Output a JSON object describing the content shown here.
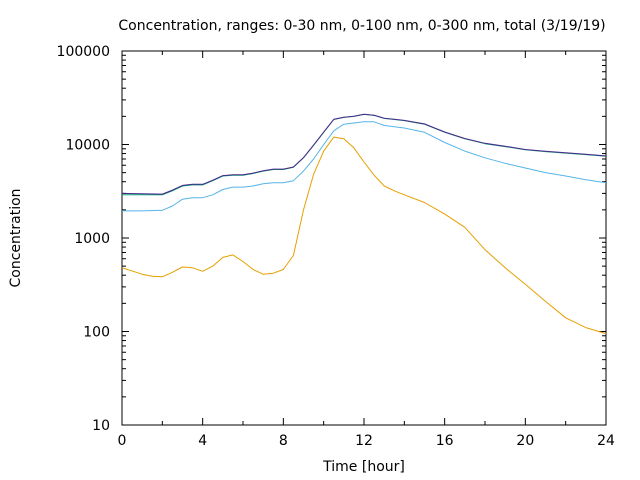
{
  "chart_data": {
    "type": "line",
    "title": "Concentration, ranges: 0-30 nm, 0-100 nm, 0-300 nm, total (3/19/19)",
    "xlabel": "Time [hour]",
    "ylabel": "Concentration",
    "xlim": [
      0,
      24
    ],
    "ylim": [
      10,
      100000
    ],
    "yscale": "log",
    "xticks": [
      0,
      4,
      8,
      12,
      16,
      20,
      24
    ],
    "yticks": [
      10,
      100,
      1000,
      10000,
      100000
    ],
    "grid": false,
    "legend": "none",
    "series": [
      {
        "color": "#e69f00",
        "x": [
          0,
          1,
          1.5,
          2,
          2.5,
          3,
          3.5,
          4,
          4.5,
          5,
          5.5,
          6,
          6.5,
          7,
          7.5,
          8,
          8.5,
          9,
          9.5,
          10,
          10.5,
          11,
          11.5,
          12,
          12.5,
          13,
          13.5,
          14,
          15,
          16,
          17,
          18,
          19,
          20,
          21,
          22,
          23,
          24
        ],
        "y": [
          480,
          410,
          390,
          385,
          430,
          490,
          480,
          440,
          500,
          620,
          660,
          560,
          460,
          410,
          420,
          460,
          650,
          2000,
          4800,
          8500,
          12000,
          11500,
          9200,
          6500,
          4700,
          3600,
          3200,
          2900,
          2400,
          1800,
          1300,
          750,
          480,
          320,
          210,
          140,
          110,
          95
        ]
      },
      {
        "color": "#56b4e9",
        "x": [
          0,
          1,
          2,
          2.5,
          3,
          3.5,
          4,
          4.5,
          5,
          5.5,
          6,
          6.5,
          7,
          7.5,
          8,
          8.5,
          9,
          9.5,
          10,
          10.5,
          11,
          11.5,
          12,
          12.5,
          13,
          13.5,
          14,
          15,
          16,
          17,
          18,
          19,
          20,
          21,
          22,
          23,
          24
        ],
        "y": [
          1950,
          1950,
          1980,
          2200,
          2600,
          2700,
          2700,
          2900,
          3300,
          3500,
          3500,
          3600,
          3800,
          3900,
          3900,
          4100,
          5200,
          7000,
          10000,
          14000,
          16500,
          17000,
          17500,
          17500,
          16000,
          15500,
          15000,
          13500,
          10500,
          8500,
          7200,
          6300,
          5600,
          5000,
          4600,
          4200,
          3900
        ]
      },
      {
        "color": "#009e73",
        "x": [
          0,
          1,
          2,
          2.5,
          3,
          3.5,
          4,
          4.5,
          5,
          5.5,
          6,
          6.5,
          7,
          7.5,
          8,
          8.5,
          9,
          9.5,
          10,
          10.5,
          11,
          11.5,
          12,
          12.5,
          13,
          13.5,
          14,
          15,
          16,
          17,
          18,
          19,
          20,
          21,
          22,
          23,
          24
        ],
        "y": [
          2900,
          2900,
          2900,
          3200,
          3600,
          3700,
          3700,
          4100,
          4600,
          4700,
          4700,
          4900,
          5200,
          5400,
          5400,
          5700,
          7200,
          9800,
          13500,
          18500,
          19500,
          20000,
          21000,
          20500,
          19000,
          18500,
          18000,
          16500,
          13500,
          11500,
          10200,
          9500,
          8800,
          8400,
          8100,
          7800,
          7500
        ]
      },
      {
        "color": "#4b2a8c",
        "x": [
          0,
          1,
          2,
          2.5,
          3,
          3.5,
          4,
          4.5,
          5,
          5.5,
          6,
          6.5,
          7,
          7.5,
          8,
          8.5,
          9,
          9.5,
          10,
          10.5,
          11,
          11.5,
          12,
          12.5,
          13,
          13.5,
          14,
          15,
          16,
          17,
          18,
          19,
          20,
          21,
          22,
          23,
          24
        ],
        "y": [
          3000,
          2980,
          2950,
          3250,
          3650,
          3750,
          3750,
          4150,
          4650,
          4750,
          4750,
          4950,
          5250,
          5450,
          5450,
          5750,
          7250,
          9850,
          13600,
          18600,
          19600,
          20100,
          21100,
          20600,
          19100,
          18600,
          18100,
          16600,
          13600,
          11600,
          10300,
          9600,
          8850,
          8450,
          8150,
          7850,
          7550
        ]
      }
    ]
  }
}
